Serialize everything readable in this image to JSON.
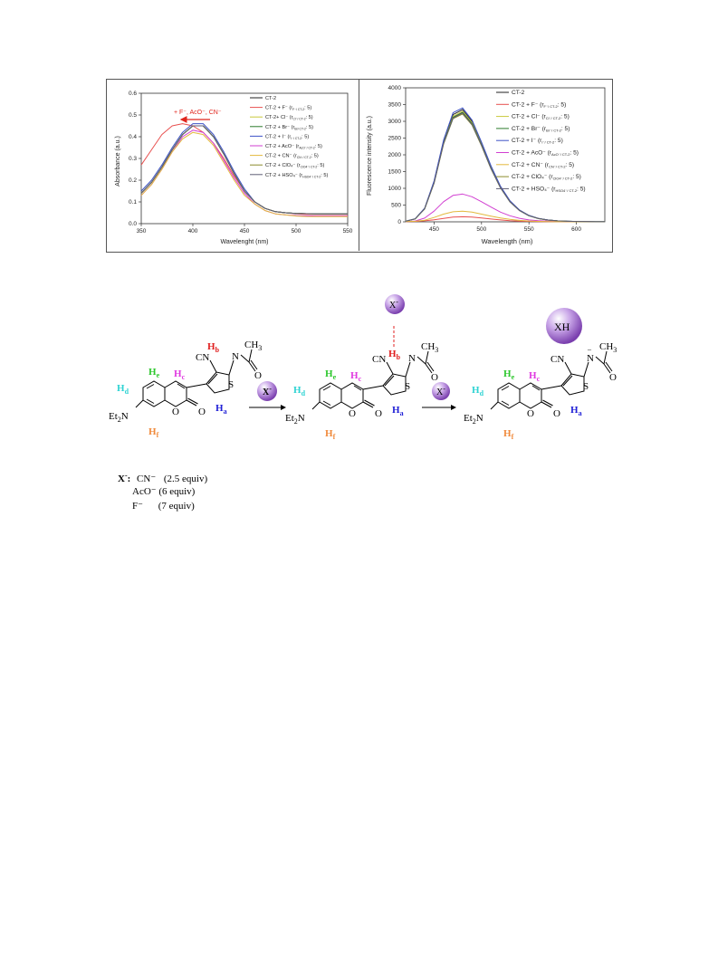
{
  "abs_chart": {
    "xlabel": "Wavelenght (nm)",
    "ylabel": "Absorbance (a.u.)",
    "xticks": [
      "350",
      "400",
      "450",
      "500",
      "550"
    ],
    "yticks": [
      "0.0",
      "0.1",
      "0.2",
      "0.3",
      "0.4",
      "0.5",
      "0.6"
    ],
    "annotation": "+ F⁻, AcO⁻, CN⁻",
    "legend": [
      {
        "main": "CT-2",
        "sub": "",
        "tail": ""
      },
      {
        "main": "CT-2 + F⁻ (r",
        "sub": "F⁻/ CT-2",
        "tail": ": 5)"
      },
      {
        "main": "CT-2+ Cl⁻ (r",
        "sub": "Cl⁻/ CT-2",
        "tail": ": 5)"
      },
      {
        "main": "CT-2 + Br⁻ (r",
        "sub": "Br/ CT-2",
        "tail": ": 5)"
      },
      {
        "main": "CT-2 + I⁻ (r",
        "sub": "I⁻/ CT-2",
        "tail": ": 5)"
      },
      {
        "main": "CT-2 + AcO⁻ (r",
        "sub": "AcO⁻/ CT-2",
        "tail": ": 5)"
      },
      {
        "main": "CT-2 + CN⁻ (r",
        "sub": "CN⁻/ CT-2",
        "tail": ": 5)"
      },
      {
        "main": "CT-2 + ClO₄⁻ (r",
        "sub": "ClO4⁻/ CT-2",
        "tail": ": 5)"
      },
      {
        "main": "CT-2 + HSO₄⁻ (r",
        "sub": "HSO4⁻/ CT-2",
        "tail": ": 5)"
      }
    ]
  },
  "fl_chart": {
    "xlabel": "Wavelength (nm)",
    "ylabel": "Fluorescence intensity (a.u.)",
    "xticks": [
      "450",
      "500",
      "550",
      "600"
    ],
    "yticks": [
      "0",
      "500",
      "1000",
      "1500",
      "2000",
      "2500",
      "3000",
      "3500",
      "4000"
    ],
    "legend": [
      {
        "main": "CT-2",
        "sub": "",
        "tail": ""
      },
      {
        "main": "CT-2 + F⁻ (r",
        "sub": "F⁻/ CT-2",
        "tail": ": 5)"
      },
      {
        "main": "CT-2 + Cl⁻ (r",
        "sub": "Cl⁻/ CT-2",
        "tail": ": 5)"
      },
      {
        "main": "CT-2 + Br⁻ (r",
        "sub": "Br⁻/ CT-2",
        "tail": ": 5)"
      },
      {
        "main": "CT-2 + I⁻ (r",
        "sub": "I⁻/ CT-2",
        "tail": ": 5)"
      },
      {
        "main": "CT-2 + AcO⁻ (r",
        "sub": "AcO⁻/ CT-2",
        "tail": ": 5)"
      },
      {
        "main": "CT-2 + CN⁻ (r",
        "sub": "CN⁻/ CT-2",
        "tail": ": 5)"
      },
      {
        "main": "CT-2 + ClO₄⁻ (r",
        "sub": "ClO4⁻/ CT-2",
        "tail": ": 5)"
      },
      {
        "main": "CT-2 + HSO₄⁻ (r",
        "sub": "HSO4⁻/ CT-2",
        "tail": ": 5)"
      }
    ]
  },
  "series_colors": [
    "#222222",
    "#e8504f",
    "#c9c93a",
    "#2a7a2a",
    "#3d52c6",
    "#d13fd1",
    "#e3b93d",
    "#8b8b2a",
    "#5e5e74"
  ],
  "chart_data": [
    {
      "type": "line",
      "xlabel": "Wavelenght (nm)",
      "ylabel": "Absorbance (a.u.)",
      "xlim": [
        350,
        550
      ],
      "ylim": [
        0.0,
        0.6
      ],
      "legend_position": "top-right",
      "x": [
        350,
        360,
        370,
        380,
        390,
        400,
        410,
        420,
        430,
        440,
        450,
        460,
        470,
        480,
        490,
        500,
        510,
        520,
        530,
        540,
        550
      ],
      "series": [
        {
          "name": "CT-2",
          "values": [
            0.14,
            0.19,
            0.26,
            0.34,
            0.41,
            0.45,
            0.45,
            0.4,
            0.32,
            0.23,
            0.15,
            0.1,
            0.07,
            0.055,
            0.05,
            0.047,
            0.046,
            0.045,
            0.045,
            0.045,
            0.045
          ]
        },
        {
          "name": "CT-2 + F⁻",
          "values": [
            0.27,
            0.34,
            0.41,
            0.45,
            0.46,
            0.45,
            0.42,
            0.37,
            0.3,
            0.22,
            0.15,
            0.1,
            0.07,
            0.055,
            0.05,
            0.045,
            0.043,
            0.042,
            0.042,
            0.042,
            0.042
          ]
        },
        {
          "name": "CT-2+ Cl⁻",
          "values": [
            0.14,
            0.19,
            0.26,
            0.34,
            0.41,
            0.45,
            0.45,
            0.4,
            0.32,
            0.23,
            0.15,
            0.1,
            0.07,
            0.055,
            0.05,
            0.047,
            0.046,
            0.045,
            0.045,
            0.045,
            0.045
          ]
        },
        {
          "name": "CT-2 + Br⁻",
          "values": [
            0.14,
            0.19,
            0.26,
            0.34,
            0.41,
            0.45,
            0.45,
            0.4,
            0.32,
            0.23,
            0.15,
            0.1,
            0.07,
            0.055,
            0.05,
            0.047,
            0.046,
            0.045,
            0.045,
            0.045,
            0.045
          ]
        },
        {
          "name": "CT-2 + I⁻",
          "values": [
            0.15,
            0.2,
            0.27,
            0.35,
            0.42,
            0.46,
            0.46,
            0.41,
            0.33,
            0.24,
            0.16,
            0.1,
            0.07,
            0.055,
            0.05,
            0.047,
            0.046,
            0.045,
            0.045,
            0.045,
            0.045
          ]
        },
        {
          "name": "CT-2 + AcO⁻",
          "values": [
            0.13,
            0.18,
            0.25,
            0.33,
            0.4,
            0.43,
            0.42,
            0.37,
            0.29,
            0.21,
            0.14,
            0.09,
            0.06,
            0.045,
            0.04,
            0.037,
            0.036,
            0.035,
            0.035,
            0.035,
            0.035
          ]
        },
        {
          "name": "CT-2 + CN⁻",
          "values": [
            0.13,
            0.18,
            0.25,
            0.33,
            0.39,
            0.42,
            0.41,
            0.36,
            0.28,
            0.2,
            0.13,
            0.09,
            0.06,
            0.045,
            0.04,
            0.035,
            0.033,
            0.032,
            0.032,
            0.032,
            0.032
          ]
        },
        {
          "name": "CT-2 + ClO₄⁻",
          "values": [
            0.14,
            0.19,
            0.26,
            0.34,
            0.41,
            0.45,
            0.45,
            0.4,
            0.32,
            0.23,
            0.15,
            0.1,
            0.07,
            0.055,
            0.05,
            0.047,
            0.046,
            0.045,
            0.045,
            0.045,
            0.045
          ]
        },
        {
          "name": "CT-2 + HSO₄⁻",
          "values": [
            0.14,
            0.19,
            0.26,
            0.34,
            0.41,
            0.45,
            0.45,
            0.4,
            0.32,
            0.23,
            0.15,
            0.1,
            0.07,
            0.055,
            0.05,
            0.047,
            0.046,
            0.045,
            0.045,
            0.045,
            0.045
          ]
        }
      ]
    },
    {
      "type": "line",
      "xlabel": "Wavelength (nm)",
      "ylabel": "Fluorescence intensity (a.u.)",
      "xlim": [
        420,
        630
      ],
      "ylim": [
        0,
        4000
      ],
      "legend_position": "top-right",
      "x": [
        420,
        430,
        440,
        450,
        460,
        470,
        480,
        490,
        500,
        510,
        520,
        530,
        540,
        550,
        560,
        570,
        580,
        590,
        600,
        610,
        620,
        630
      ],
      "series": [
        {
          "name": "CT-2",
          "values": [
            20,
            90,
            400,
            1200,
            2400,
            3200,
            3350,
            3000,
            2350,
            1650,
            1050,
            620,
            350,
            190,
            100,
            55,
            30,
            18,
            10,
            6,
            4,
            3
          ]
        },
        {
          "name": "CT-2 + F⁻",
          "values": [
            5,
            10,
            30,
            60,
            100,
            140,
            150,
            140,
            115,
            85,
            58,
            36,
            22,
            13,
            8,
            5,
            3,
            2,
            1,
            1,
            0,
            0
          ]
        },
        {
          "name": "CT-2 + Cl⁻",
          "values": [
            20,
            88,
            395,
            1180,
            2370,
            3150,
            3300,
            2960,
            2320,
            1620,
            1030,
            610,
            345,
            185,
            98,
            54,
            30,
            18,
            10,
            6,
            4,
            3
          ]
        },
        {
          "name": "CT-2 + Br⁻",
          "values": [
            20,
            87,
            390,
            1170,
            2350,
            3120,
            3270,
            2930,
            2300,
            1600,
            1020,
            600,
            340,
            182,
            96,
            53,
            29,
            17,
            10,
            6,
            4,
            3
          ]
        },
        {
          "name": "CT-2 + I⁻",
          "values": [
            21,
            92,
            405,
            1220,
            2440,
            3260,
            3400,
            3040,
            2380,
            1670,
            1060,
            630,
            355,
            192,
            102,
            56,
            31,
            18,
            10,
            6,
            4,
            3
          ]
        },
        {
          "name": "CT-2 + AcO⁻",
          "values": [
            6,
            25,
            110,
            320,
            600,
            790,
            830,
            750,
            600,
            440,
            290,
            180,
            105,
            58,
            32,
            18,
            10,
            6,
            4,
            2,
            1,
            1
          ]
        },
        {
          "name": "CT-2 + CN⁻",
          "values": [
            5,
            15,
            50,
            130,
            230,
            300,
            320,
            290,
            230,
            170,
            115,
            72,
            42,
            24,
            13,
            7,
            4,
            2,
            1,
            1,
            0,
            0
          ]
        },
        {
          "name": "CT-2 + ClO₄⁻",
          "values": [
            19,
            85,
            385,
            1150,
            2320,
            3080,
            3220,
            2890,
            2270,
            1580,
            1010,
            595,
            335,
            180,
            95,
            52,
            29,
            17,
            10,
            6,
            4,
            3
          ]
        },
        {
          "name": "CT-2 + HSO₄⁻",
          "values": [
            20,
            86,
            388,
            1160,
            2340,
            3100,
            3250,
            2910,
            2290,
            1590,
            1015,
            598,
            338,
            181,
            96,
            53,
            29,
            17,
            10,
            6,
            4,
            3
          ]
        }
      ]
    }
  ],
  "scheme": {
    "mol1": {
      "CN": "CN",
      "CH3": "CH",
      "CH3_sub": "3",
      "O": "O",
      "S": "S",
      "N": "N",
      "Ha": "H",
      "Ha_sub": "a",
      "Hb": "H",
      "Hb_sub": "b",
      "Hc": "H",
      "Hc_sub": "c",
      "Hd": "H",
      "Hd_sub": "d",
      "He": "H",
      "He_sub": "e",
      "Hf": "H",
      "Hf_sub": "f",
      "Et2N": "Et",
      "Et2N_sub": "2",
      "Et2N_N": "N"
    },
    "mol2": {
      "CN": "CN",
      "CH3": "CH",
      "CH3_sub": "3",
      "O": "O",
      "S": "S",
      "N": "N",
      "Ha": "H",
      "Ha_sub": "a",
      "Hb": "H",
      "Hb_sub": "b",
      "Hc": "H",
      "Hc_sub": "c",
      "Hd": "H",
      "Hd_sub": "d",
      "He": "H",
      "He_sub": "e",
      "Hf": "H",
      "Hf_sub": "f",
      "Et2N": "Et",
      "Et2N_sub": "2",
      "Et2N_N": "N"
    },
    "mol3": {
      "CN": "CN",
      "CH3": "CH",
      "CH3_sub": "3",
      "O": "O",
      "S": "S",
      "N": "N",
      "Ha": "H",
      "Ha_sub": "a",
      "Hc": "H",
      "Hc_sub": "c",
      "Hd": "H",
      "Hd_sub": "d",
      "He": "H",
      "He_sub": "e",
      "Hf": "H",
      "Hf_sub": "f",
      "Et2N": "Et",
      "Et2N_sub": "2",
      "Et2N_N": "N"
    },
    "arrow1_label": "X",
    "arrow2_label": "X",
    "bound_anion": "X",
    "product": "XH",
    "minus": "–",
    "minus_small": "-",
    "label_colors": {
      "Ha": "#1f1fd6",
      "Hb": "#e02020",
      "Hc": "#e03ae0",
      "Hd": "#2fd3d3",
      "He": "#2ec72e",
      "Hf": "#f08a3c"
    }
  },
  "equiv": {
    "heading": "X",
    "heading_tail": ":",
    "rows": [
      {
        "ion": "CN⁻",
        "amount": "(2.5 equiv)"
      },
      {
        "ion": "AcO⁻",
        "amount": "(6 equiv)"
      },
      {
        "ion": "F⁻",
        "amount": "(7 equiv)"
      }
    ]
  }
}
